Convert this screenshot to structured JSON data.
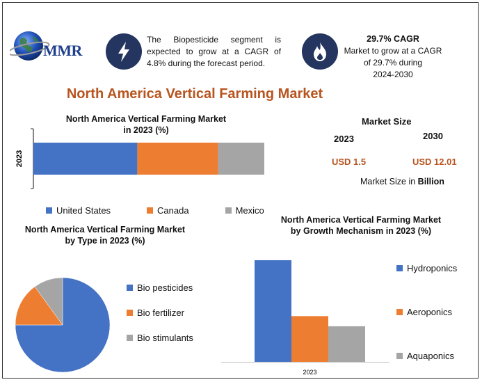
{
  "brand": {
    "name": "MMR"
  },
  "info": {
    "biopesticide_text": "The Biopesticide segment is expected to grow at a CAGR of 4.8% during the forecast period.",
    "cagr_title": "29.7% CAGR",
    "cagr_text": "Market to grow at a CAGR of 29.7% during",
    "cagr_years": "2024-2030",
    "icons": [
      "lightning-icon",
      "flame-icon"
    ]
  },
  "main_title": "North America Vertical Farming Market",
  "market_size": {
    "title": "Market Size",
    "year_a": "2023",
    "year_b": "2030",
    "value_a": "USD 1.5",
    "value_b": "USD 12.01",
    "note_prefix": "Market Size in ",
    "note_bold": "Billion"
  },
  "colors": {
    "blue": "#4472c4",
    "orange": "#ed7d31",
    "gray": "#a5a5a5",
    "accent": "#b8541f",
    "badge": "#24355f"
  },
  "chart_data": [
    {
      "type": "bar",
      "orientation": "horizontal-stacked",
      "title_line1": "North America Vertical Farming Market",
      "title_line2": "in 2023 (%)",
      "categories": [
        "2023"
      ],
      "series": [
        {
          "name": "United States",
          "values": [
            45
          ]
        },
        {
          "name": "Canada",
          "values": [
            35
          ]
        },
        {
          "name": "Mexico",
          "values": [
            20
          ]
        }
      ],
      "legend": "bottom"
    },
    {
      "type": "pie",
      "title_line1": "North America Vertical Farming Market",
      "title_line2": "by Type in 2023 (%)",
      "labels": [
        "Bio pesticides",
        "Bio fertilizer",
        "Bio stimulants"
      ],
      "values": [
        75,
        15,
        10
      ],
      "legend": "right"
    },
    {
      "type": "bar",
      "title_line1": "North America Vertical Farming Market",
      "title_line2": "by Growth Mechanism in 2023 (%)",
      "categories": [
        "2023"
      ],
      "series": [
        {
          "name": "Hydroponics",
          "values": [
            60
          ]
        },
        {
          "name": "Aeroponics",
          "values": [
            27
          ]
        },
        {
          "name": "Aquaponics",
          "values": [
            21
          ]
        }
      ],
      "legend": "right"
    }
  ]
}
